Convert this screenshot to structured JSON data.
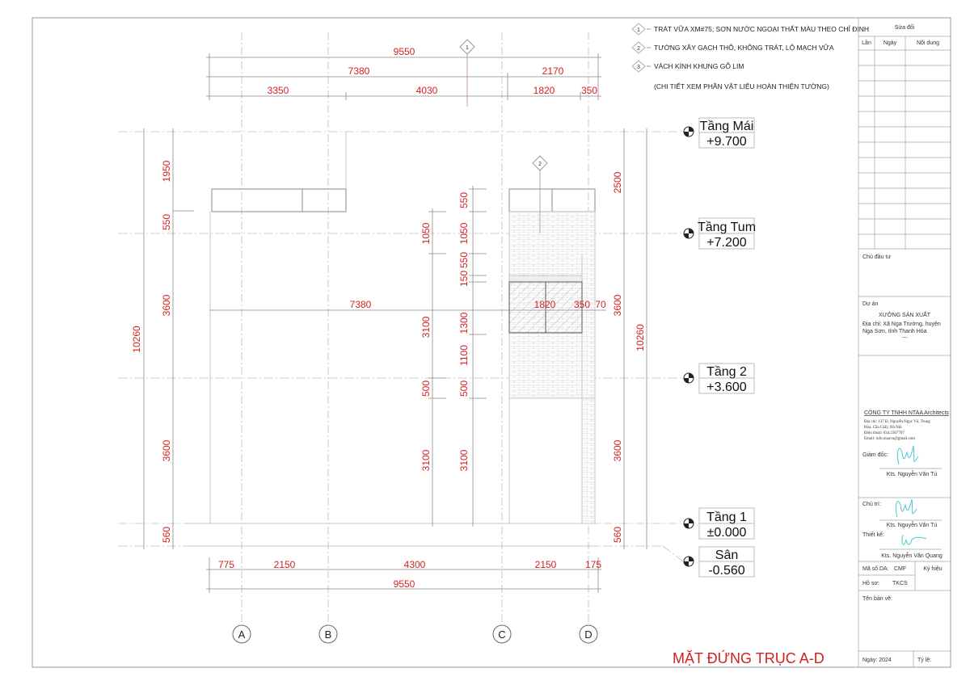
{
  "notes": [
    {
      "tag": "1",
      "text": "TRÁT VỮA XM#75; SƠN NƯỚC NGOẠI THẤT MÀU THEO CHỈ ĐỊNH"
    },
    {
      "tag": "2",
      "text": "TƯỜNG XÂY GẠCH THÔ, KHÔNG TRÁT, LỘ MẠCH VỮA"
    },
    {
      "tag": "3",
      "text": "VÁCH KÍNH KHUNG GỖ LIM"
    },
    {
      "tag": "",
      "text": "(CHI TIẾT XEM PHẦN VẬT LIỆU HOÀN THIỆN TƯỜNG)"
    }
  ],
  "callouts": [
    "1",
    "2"
  ],
  "dims": {
    "top_total": "9550",
    "top_row2": [
      "7380",
      "2170"
    ],
    "top_row3": [
      "3350",
      "4030",
      "1820",
      "350"
    ],
    "bottom_row1": [
      "775",
      "2150",
      "4300",
      "2150",
      "175"
    ],
    "bottom_total": "9550",
    "left_total": "10260",
    "left_parts": [
      "1950",
      "550",
      "3600",
      "3600",
      "560"
    ],
    "right_parts": [
      "2500",
      "3600",
      "3600",
      "560"
    ],
    "right_total": "10260",
    "mid1": [
      "1050",
      "3100",
      "500",
      "3100"
    ],
    "mid2": [
      "550",
      "1050",
      "550",
      "150",
      "1300",
      "1100",
      "500",
      "3100"
    ],
    "window_row": [
      "7380",
      "1820",
      "350",
      "70"
    ]
  },
  "levels": [
    {
      "name": "Tầng Mái",
      "elev": "+9.700"
    },
    {
      "name": "Tầng Tum",
      "elev": "+7.200"
    },
    {
      "name": "Tầng 2",
      "elev": "+3.600"
    },
    {
      "name": "Tầng 1",
      "elev": "±0.000"
    },
    {
      "name": "Sân",
      "elev": "-0.560"
    }
  ],
  "axes": [
    "A",
    "B",
    "C",
    "D"
  ],
  "drawing_title": "MẶT ĐỨNG TRỤC  A-D",
  "title_block": {
    "revisions_header": "Sửa đổi",
    "rev_cols": [
      "Lần",
      "Ngày",
      "Nội dung"
    ],
    "owner_label": "Chủ đầu tư",
    "project_label": "Dự án",
    "project_name": "XƯỞNG SẢN XUẤT",
    "project_addr1": "Địa chỉ: Xã Nga Trường, huyện",
    "project_addr2": "Nga Sơn, tỉnh Thanh Hóa",
    "project_extra": "---",
    "company": "CÔNG TY TNHH NTAA Architects",
    "company_addr1": "Địa chỉ: 137 Đ. Nguyễn Ngọc Vũ, Trung",
    "company_addr2": "Hòa, Cầu Giấy, Hà Nội",
    "company_phone": "Điện thoại: 034.2367707",
    "company_email": "Email: info.ntaavn@gmail.com",
    "director_label": "Giám đốc:",
    "director_name": "Kts. Nguyễn Văn Tú",
    "lead_label": "Chủ trì:",
    "lead_name": "Kts. Nguyễn Văn Tú",
    "designer_label": "Thiết kế:",
    "designer_name": "Kts. Nguyễn Văn Quang",
    "project_code_label": "Mã số DA:",
    "project_code": "CMF",
    "symbol_label": "Ký hiệu",
    "file_label": "Hồ sơ:",
    "file_value": "TKCS",
    "sheet_name_label": "Tên bản vẽ:",
    "date": "Ngày: 2024",
    "scale_label": "Tỷ lệ:"
  },
  "colors": {
    "dimension": "#d42020",
    "signature": "#4cc6d6"
  }
}
